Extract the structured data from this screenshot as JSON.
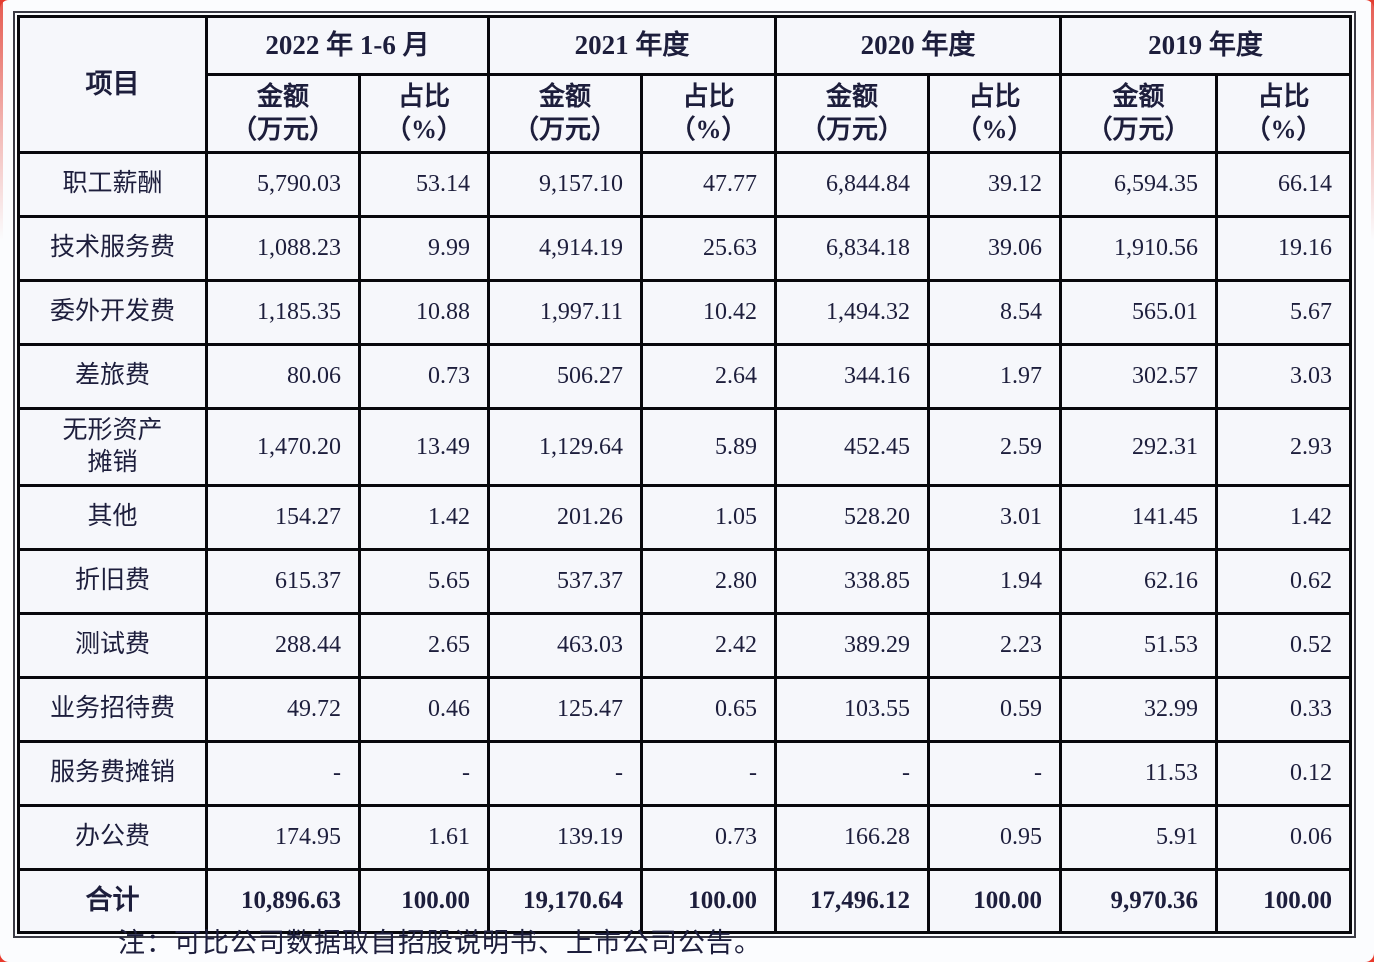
{
  "page": {
    "background_color": "#e8392b",
    "card_color": "#fbfcfe",
    "note": "注：可比公司数据取自招股说明书、上市公司公告。"
  },
  "table": {
    "border_color": "#08080c",
    "text_color": "#1d1e3c",
    "cell_background": "#f6f7fb",
    "item_header": "项目",
    "groups": [
      {
        "label": "2022 年 1-6 月"
      },
      {
        "label": "2021 年度"
      },
      {
        "label": "2020 年度"
      },
      {
        "label": "2019 年度"
      }
    ],
    "sub_headers": {
      "amount": "金额\n（万元）",
      "ratio": "占比\n（%）"
    },
    "rows": [
      {
        "item": "职工薪酬",
        "values": [
          "5,790.03",
          "53.14",
          "9,157.10",
          "47.77",
          "6,844.84",
          "39.12",
          "6,594.35",
          "66.14"
        ]
      },
      {
        "item": "技术服务费",
        "values": [
          "1,088.23",
          "9.99",
          "4,914.19",
          "25.63",
          "6,834.18",
          "39.06",
          "1,910.56",
          "19.16"
        ]
      },
      {
        "item": "委外开发费",
        "values": [
          "1,185.35",
          "10.88",
          "1,997.11",
          "10.42",
          "1,494.32",
          "8.54",
          "565.01",
          "5.67"
        ]
      },
      {
        "item": "差旅费",
        "values": [
          "80.06",
          "0.73",
          "506.27",
          "2.64",
          "344.16",
          "1.97",
          "302.57",
          "3.03"
        ]
      },
      {
        "item": "无形资产\n摊销",
        "values": [
          "1,470.20",
          "13.49",
          "1,129.64",
          "5.89",
          "452.45",
          "2.59",
          "292.31",
          "2.93"
        ]
      },
      {
        "item": "其他",
        "values": [
          "154.27",
          "1.42",
          "201.26",
          "1.05",
          "528.20",
          "3.01",
          "141.45",
          "1.42"
        ]
      },
      {
        "item": "折旧费",
        "values": [
          "615.37",
          "5.65",
          "537.37",
          "2.80",
          "338.85",
          "1.94",
          "62.16",
          "0.62"
        ]
      },
      {
        "item": "测试费",
        "values": [
          "288.44",
          "2.65",
          "463.03",
          "2.42",
          "389.29",
          "2.23",
          "51.53",
          "0.52"
        ]
      },
      {
        "item": "业务招待费",
        "values": [
          "49.72",
          "0.46",
          "125.47",
          "0.65",
          "103.55",
          "0.59",
          "32.99",
          "0.33"
        ]
      },
      {
        "item": "服务费摊销",
        "values": [
          "-",
          "-",
          "-",
          "-",
          "-",
          "-",
          "11.53",
          "0.12"
        ]
      },
      {
        "item": "办公费",
        "values": [
          "174.95",
          "1.61",
          "139.19",
          "0.73",
          "166.28",
          "0.95",
          "5.91",
          "0.06"
        ]
      }
    ],
    "total": {
      "item": "合计",
      "values": [
        "10,896.63",
        "100.00",
        "19,170.64",
        "100.00",
        "17,496.12",
        "100.00",
        "9,970.36",
        "100.00"
      ]
    }
  }
}
